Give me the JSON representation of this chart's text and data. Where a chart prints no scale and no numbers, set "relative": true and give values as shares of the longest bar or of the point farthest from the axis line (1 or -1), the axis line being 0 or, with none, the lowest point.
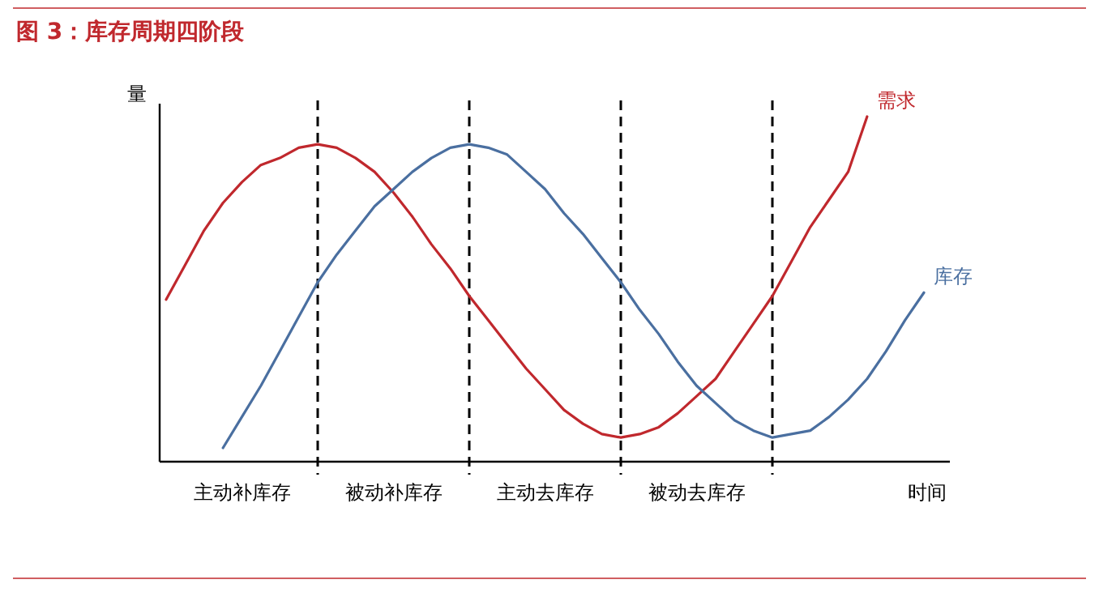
{
  "chart_data": {
    "type": "line",
    "title": "图 3：库存周期四阶段",
    "xlabel": "时间",
    "ylabel": "量",
    "relative": true,
    "grid": "x",
    "categories": [
      null,
      null,
      null,
      null,
      "主动补库存",
      null,
      null,
      null,
      null,
      null,
      null,
      null,
      "被动补库存",
      null,
      null,
      null,
      null,
      null,
      null,
      null,
      "主动去库存",
      null,
      null,
      null,
      null,
      null,
      null,
      null,
      "被动去库存",
      null,
      null,
      null,
      null,
      null,
      null,
      null,
      null,
      null,
      null,
      null,
      null
    ],
    "series": [
      {
        "name": "需求",
        "color": "#c0282d",
        "values": [
          0.47,
          0.57,
          0.67,
          0.75,
          0.81,
          0.86,
          0.88,
          0.91,
          0.92,
          0.91,
          0.88,
          0.84,
          0.78,
          0.71,
          0.63,
          0.56,
          0.48,
          0.41,
          0.34,
          0.27,
          0.21,
          0.15,
          0.11,
          0.08,
          0.07,
          0.08,
          0.1,
          0.14,
          0.19,
          0.24,
          0.32,
          0.4,
          0.48,
          0.58,
          0.68,
          0.76,
          0.84,
          1.0,
          null,
          null,
          null
        ]
      },
      {
        "name": "库存",
        "color": "#4a6fa0",
        "values": [
          null,
          null,
          null,
          0.04,
          0.13,
          0.22,
          0.32,
          0.42,
          0.52,
          0.6,
          0.67,
          0.74,
          0.79,
          0.84,
          0.88,
          0.91,
          0.92,
          0.91,
          0.89,
          0.84,
          0.79,
          0.72,
          0.66,
          0.59,
          0.52,
          0.44,
          0.37,
          0.29,
          0.22,
          0.17,
          0.12,
          0.09,
          0.07,
          0.08,
          0.09,
          0.13,
          0.18,
          0.24,
          0.32,
          0.41,
          0.49
        ]
      }
    ]
  }
}
